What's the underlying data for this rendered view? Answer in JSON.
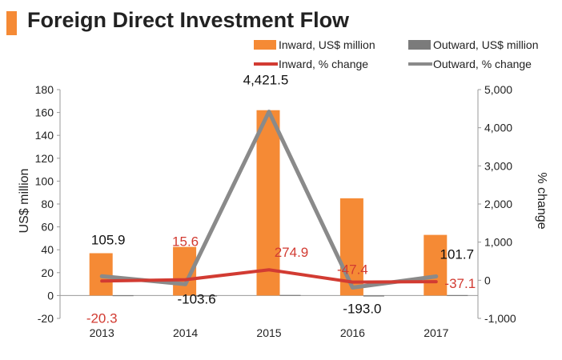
{
  "title": "Foreign Direct Investment Flow",
  "colors": {
    "inward_bar": "#f58a35",
    "outward_bar": "#7b7b7b",
    "inward_line": "#d23b32",
    "outward_line": "#8a8a8a",
    "title_accent": "#f58a35"
  },
  "chart_data": {
    "type": "bar",
    "title": "Foreign Direct Investment Flow",
    "categories": [
      "2013",
      "2014",
      "2015",
      "2016",
      "2017"
    ],
    "ylabel": "US$ million",
    "y2label": "% change",
    "ylim": [
      -20,
      180
    ],
    "yticks": [
      "-20",
      "0",
      "20",
      "40",
      "60",
      "80",
      "100",
      "120",
      "140",
      "160",
      "180"
    ],
    "y2lim": [
      -1000,
      5000
    ],
    "y2ticks": [
      "-1,000",
      "0",
      "1,000",
      "2,000",
      "3,000",
      "4,000",
      "5,000"
    ],
    "legend_position": "top-right",
    "grid": false,
    "series": [
      {
        "name": "Inward, US$ million",
        "kind": "bar",
        "axis": "left",
        "values": [
          37,
          42.5,
          162,
          85,
          53
        ]
      },
      {
        "name": "Outward, US$ million",
        "kind": "bar",
        "axis": "left",
        "values": [
          0.3,
          -0.4,
          0.5,
          -0.2,
          0.4
        ]
      },
      {
        "name": "Inward, % change",
        "kind": "line",
        "axis": "right",
        "values": [
          -20.3,
          15.6,
          274.9,
          -47.4,
          -37.1
        ],
        "labels": [
          "-20.3",
          "15.6",
          "274.9",
          "-47.4",
          "-37.1"
        ]
      },
      {
        "name": "Outward, % change",
        "kind": "line",
        "axis": "right",
        "values": [
          105.9,
          -103.6,
          4421.5,
          -193.0,
          101.7
        ],
        "labels": [
          "105.9",
          "-103.6",
          "4,421.5",
          "-193.0",
          "101.7"
        ]
      }
    ]
  }
}
